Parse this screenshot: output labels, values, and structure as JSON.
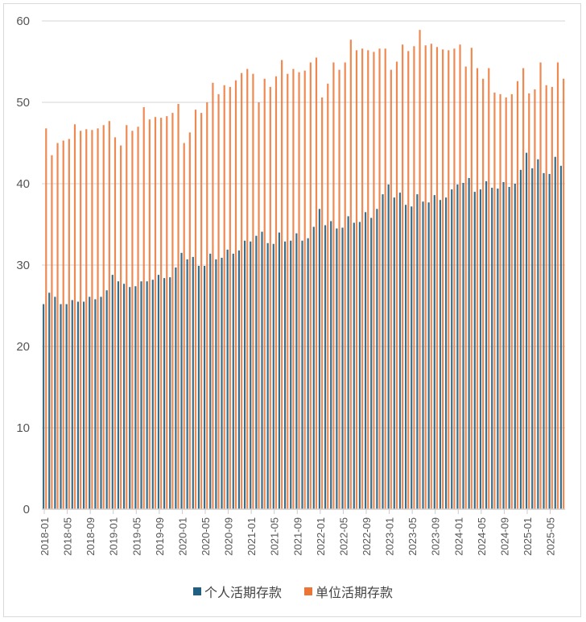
{
  "chart_data": {
    "type": "bar",
    "title": "",
    "xlabel": "",
    "ylabel": "",
    "ylim": [
      0,
      60
    ],
    "yticks": [
      0,
      10,
      20,
      30,
      40,
      50,
      60
    ],
    "grid": true,
    "legend_position": "bottom",
    "x": [
      "2018-01",
      "2018-02",
      "2018-03",
      "2018-04",
      "2018-05",
      "2018-06",
      "2018-07",
      "2018-08",
      "2018-09",
      "2018-10",
      "2018-11",
      "2018-12",
      "2019-01",
      "2019-02",
      "2019-03",
      "2019-04",
      "2019-05",
      "2019-06",
      "2019-07",
      "2019-08",
      "2019-09",
      "2019-10",
      "2019-11",
      "2019-12",
      "2020-01",
      "2020-02",
      "2020-03",
      "2020-04",
      "2020-05",
      "2020-06",
      "2020-07",
      "2020-08",
      "2020-09",
      "2020-10",
      "2020-11",
      "2020-12",
      "2021-01",
      "2021-02",
      "2021-03",
      "2021-04",
      "2021-05",
      "2021-06",
      "2021-07",
      "2021-08",
      "2021-09",
      "2021-10",
      "2021-11",
      "2021-12",
      "2022-01",
      "2022-02",
      "2022-03",
      "2022-04",
      "2022-05",
      "2022-06",
      "2022-07",
      "2022-08",
      "2022-09",
      "2022-10",
      "2022-11",
      "2022-12",
      "2023-01",
      "2023-02",
      "2023-03",
      "2023-04",
      "2023-05",
      "2023-06",
      "2023-07",
      "2023-08",
      "2023-09",
      "2023-10",
      "2023-11",
      "2023-12",
      "2024-01",
      "2024-02",
      "2024-03",
      "2024-04",
      "2024-05",
      "2024-06",
      "2024-07",
      "2024-08",
      "2024-09",
      "2024-10",
      "2024-11",
      "2024-12",
      "2025-01",
      "2025-02",
      "2025-03",
      "2025-04",
      "2025-05",
      "2025-06",
      "2025-07"
    ],
    "xtick_labels": [
      "2018-01",
      "2018-05",
      "2018-09",
      "2019-01",
      "2019-05",
      "2019-09",
      "2020-01",
      "2020-05",
      "2020-09",
      "2021-01",
      "2021-05",
      "2021-09",
      "2022-01",
      "2022-05",
      "2022-09",
      "2023-01",
      "2023-05",
      "2023-09",
      "2024-01",
      "2024-05",
      "2024-09",
      "2025-01",
      "2025-05"
    ],
    "series": [
      {
        "name": "个人活期存款",
        "color": "#1f5f82",
        "values": [
          25.2,
          26.6,
          26.1,
          25.2,
          25.2,
          25.7,
          25.5,
          25.5,
          26.1,
          25.8,
          26.1,
          26.9,
          28.8,
          28.0,
          27.7,
          27.3,
          27.4,
          28.0,
          28.0,
          28.2,
          28.8,
          28.4,
          28.5,
          29.7,
          31.5,
          30.7,
          31.0,
          29.9,
          29.9,
          31.4,
          30.7,
          30.9,
          31.9,
          31.4,
          31.8,
          33.0,
          32.9,
          33.6,
          34.1,
          32.7,
          32.6,
          34.0,
          32.9,
          33.0,
          33.9,
          33.0,
          33.3,
          34.7,
          36.9,
          34.9,
          35.4,
          34.5,
          34.6,
          36.0,
          35.2,
          35.3,
          36.5,
          35.8,
          36.9,
          38.7,
          39.9,
          38.3,
          38.9,
          37.4,
          37.2,
          38.7,
          37.8,
          37.7,
          38.6,
          38.0,
          38.3,
          39.3,
          39.9,
          40.1,
          40.7,
          39.0,
          39.3,
          40.3,
          39.5,
          39.4,
          40.2,
          39.6,
          40.0,
          41.7,
          43.8,
          41.9,
          43.0,
          41.3,
          41.2,
          43.3,
          42.2
        ]
      },
      {
        "name": "单位活期存款",
        "color": "#ec7434",
        "values": [
          46.8,
          43.5,
          45.0,
          45.3,
          45.5,
          47.3,
          46.5,
          46.7,
          46.6,
          46.8,
          47.2,
          47.7,
          45.7,
          44.7,
          47.2,
          46.5,
          47.0,
          49.4,
          47.9,
          48.2,
          48.1,
          48.3,
          48.7,
          49.8,
          45.0,
          46.3,
          49.1,
          48.7,
          50.0,
          52.4,
          51.0,
          52.1,
          51.9,
          52.7,
          53.6,
          54.1,
          53.5,
          50.0,
          52.9,
          51.9,
          53.2,
          55.2,
          53.5,
          54.1,
          53.7,
          53.9,
          54.9,
          55.5,
          50.6,
          52.3,
          54.9,
          54.0,
          54.9,
          57.7,
          56.4,
          56.6,
          56.4,
          56.2,
          56.6,
          56.6,
          54.0,
          55.0,
          57.1,
          56.3,
          56.9,
          58.9,
          57.0,
          57.2,
          56.8,
          56.5,
          56.4,
          56.6,
          57.1,
          54.4,
          56.7,
          54.2,
          52.9,
          54.2,
          51.2,
          51.0,
          50.6,
          51.0,
          52.6,
          54.2,
          51.1,
          51.6,
          54.9,
          52.1,
          51.9,
          54.9,
          52.9
        ]
      }
    ]
  }
}
